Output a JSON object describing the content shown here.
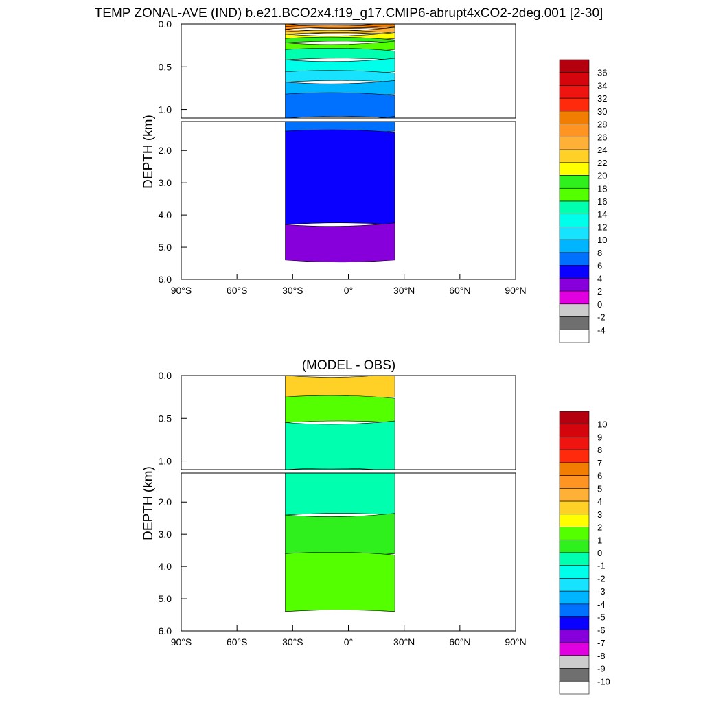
{
  "figure": {
    "title": "TEMP ZONAL-AVE (IND) b.e21.BCO2x4.f19_g17.CMIP6-abrupt4xCO2-2deg.001 [2-30]"
  },
  "chart_data": [
    {
      "type": "contour",
      "panel": "temperature",
      "title": "TEMP ZONAL-AVE (IND) b.e21.BCO2x4.f19_g17.CMIP6-abrupt4xCO2-2deg.001 [2-30]",
      "ylabel": "DEPTH (km)",
      "xlabel": "",
      "x_ticks": [
        "90°S",
        "60°S",
        "30°S",
        "0°",
        "30°N",
        "60°N",
        "90°N"
      ],
      "y_ticks_upper": [
        "0.0",
        "0.5",
        "1.0"
      ],
      "y_ticks_lower": [
        "2.0",
        "3.0",
        "4.0",
        "5.0",
        "6.0"
      ],
      "xlim": [
        -90,
        90
      ],
      "ylim_upper_km": [
        0.0,
        1.1
      ],
      "ylim_lower_km": [
        1.1,
        6.0
      ],
      "data_extent_lat": [
        -34,
        25
      ],
      "colorbar": {
        "labels": [
          "36",
          "34",
          "32",
          "30",
          "28",
          "26",
          "24",
          "22",
          "20",
          "18",
          "16",
          "14",
          "12",
          "10",
          "8",
          "6",
          "4",
          "2",
          "0",
          "-2",
          "-4"
        ],
        "colors": [
          "#b4000e",
          "#d4050c",
          "#ef1410",
          "#ff2a0c",
          "#f17e00",
          "#ff9422",
          "#ffb037",
          "#ffd026",
          "#ffff00",
          "#2fef1c",
          "#54ff00",
          "#00ffae",
          "#00ffea",
          "#17e3ff",
          "#00b5ff",
          "#0071ff",
          "#0a00ff",
          "#8700db",
          "#e000e0",
          "#cccccc",
          "#6f6f6f",
          "#ffffff"
        ]
      },
      "layers": [
        {
          "depth_km": 0.03,
          "value": 28
        },
        {
          "depth_km": 0.06,
          "value": 26
        },
        {
          "depth_km": 0.09,
          "value": 24
        },
        {
          "depth_km": 0.12,
          "value": 22
        },
        {
          "depth_km": 0.17,
          "value": 20
        },
        {
          "depth_km": 0.22,
          "value": 18
        },
        {
          "depth_km": 0.3,
          "value": 16
        },
        {
          "depth_km": 0.42,
          "value": 14
        },
        {
          "depth_km": 0.56,
          "value": 12
        },
        {
          "depth_km": 0.68,
          "value": 10
        },
        {
          "depth_km": 0.82,
          "value": 8
        },
        {
          "depth_km": 1.1,
          "value": 6
        },
        {
          "depth_km": 1.4,
          "value": 6
        },
        {
          "depth_km": 4.3,
          "value": 4
        },
        {
          "depth_km": 5.4,
          "value": 2
        }
      ]
    },
    {
      "type": "contour",
      "panel": "difference",
      "title": "(MODEL - OBS)",
      "ylabel": "DEPTH (km)",
      "xlabel": "",
      "x_ticks": [
        "90°S",
        "60°S",
        "30°S",
        "0°",
        "30°N",
        "60°N",
        "90°N"
      ],
      "y_ticks_upper": [
        "0.0",
        "0.5",
        "1.0"
      ],
      "y_ticks_lower": [
        "2.0",
        "3.0",
        "4.0",
        "5.0",
        "6.0"
      ],
      "xlim": [
        -90,
        90
      ],
      "ylim_upper_km": [
        0.0,
        1.1
      ],
      "ylim_lower_km": [
        1.1,
        6.0
      ],
      "data_extent_lat": [
        -34,
        25
      ],
      "colorbar": {
        "labels": [
          "10",
          "9",
          "8",
          "7",
          "6",
          "5",
          "4",
          "3",
          "2",
          "1",
          "0",
          "-1",
          "-2",
          "-3",
          "-4",
          "-5",
          "-6",
          "-7",
          "-8",
          "-9",
          "-10"
        ],
        "colors": [
          "#b4000e",
          "#d4050c",
          "#ef1410",
          "#ff2a0c",
          "#f17e00",
          "#ff9422",
          "#ffb037",
          "#ffd026",
          "#ffff00",
          "#54ff00",
          "#2fef1c",
          "#00ffae",
          "#00ffea",
          "#17e3ff",
          "#00b5ff",
          "#0071ff",
          "#0a00ff",
          "#8700db",
          "#e000e0",
          "#cccccc",
          "#6f6f6f",
          "#ffffff"
        ]
      },
      "layers": [
        {
          "depth_km": 0.25,
          "value": 3
        },
        {
          "depth_km": 0.55,
          "value": 1
        },
        {
          "depth_km": 1.1,
          "value": -1
        },
        {
          "depth_km": 2.4,
          "value": -1
        },
        {
          "depth_km": 3.6,
          "value": 0
        },
        {
          "depth_km": 5.4,
          "value": 1
        }
      ]
    }
  ]
}
